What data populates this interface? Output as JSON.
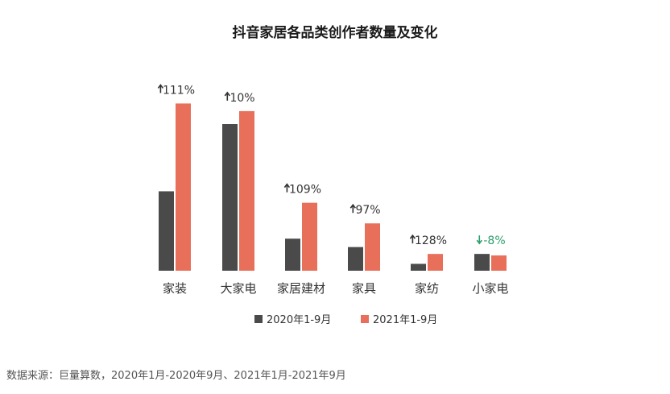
{
  "chart_data": {
    "type": "bar",
    "title": "抖音家居各品类创作者数量及变化",
    "categories": [
      "家装",
      "大家电",
      "家居建材",
      "家具",
      "家纺",
      "小家电"
    ],
    "series": [
      {
        "name": "2020年1-9月",
        "color": "#4a4a4a",
        "values": [
          104,
          192,
          42,
          31,
          9,
          22
        ]
      },
      {
        "name": "2021年1-9月",
        "color": "#e8705a",
        "values": [
          219,
          209,
          89,
          62,
          22,
          20
        ]
      }
    ],
    "change_labels": [
      {
        "text": "111%",
        "direction": "up"
      },
      {
        "text": "10%",
        "direction": "up"
      },
      {
        "text": "109%",
        "direction": "up"
      },
      {
        "text": "97%",
        "direction": "up"
      },
      {
        "text": "128%",
        "direction": "up"
      },
      {
        "text": "-8%",
        "direction": "down"
      }
    ],
    "change_colors": {
      "up": "#333333",
      "down": "#2e9e6e"
    },
    "ylim": [
      0,
      230
    ],
    "legend_position": "bottom",
    "grid": false
  },
  "source": "数据来源：巨量算数，2020年1月-2020年9月、2021年1月-2021年9月"
}
